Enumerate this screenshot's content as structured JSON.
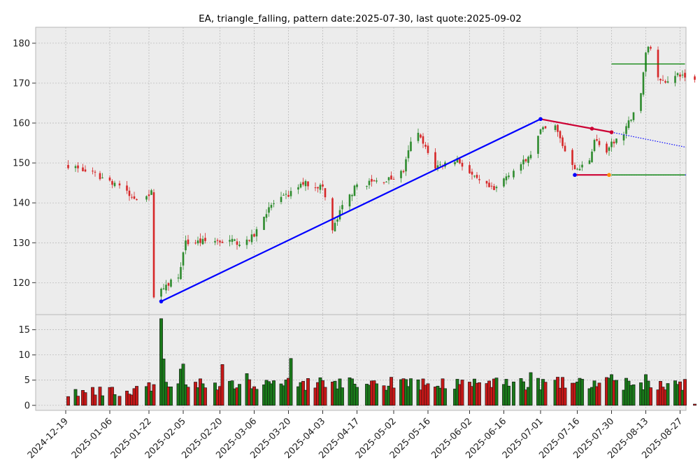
{
  "chart_data": {
    "type": "candlestick",
    "title": "EA, triangle_falling, pattern date:2025-07-30, last quote:2025-09-02",
    "xlabel": "",
    "ylabel": "",
    "grid": true,
    "x_tick_labels": [
      "2024-12-19",
      "2025-01-06",
      "2025-01-22",
      "2025-02-05",
      "2025-02-20",
      "2025-03-06",
      "2025-03-20",
      "2025-04-03",
      "2025-04-17",
      "2025-05-02",
      "2025-05-16",
      "2025-06-02",
      "2025-06-16",
      "2025-07-01",
      "2025-07-16",
      "2025-07-30",
      "2025-08-13",
      "2025-08-27"
    ],
    "price_panel": {
      "ylim": [
        112,
        184
      ],
      "y_ticks": [
        120,
        130,
        140,
        150,
        160,
        170,
        180
      ],
      "trend_lines": [
        {
          "color": "#0000ff",
          "from": [
            "2025-01-27",
            115.3
          ],
          "to": [
            "2025-07-01",
            161.0
          ]
        },
        {
          "color": "#cc0033",
          "from": [
            "2025-07-01",
            161.0
          ],
          "to": [
            "2025-07-30",
            157.7
          ]
        },
        {
          "color": "#cc0033",
          "from": [
            "2025-07-15",
            147.0
          ],
          "to": [
            "2025-07-29",
            147.0
          ]
        }
      ],
      "projection_lines": [
        {
          "color": "#0000ff",
          "style": "dotted",
          "from": [
            "2025-07-30",
            157.7
          ],
          "to": [
            "2025-09-10",
            152.5
          ]
        },
        {
          "color": "#0000ff",
          "style": "dotted",
          "from": [
            "2025-07-29",
            147.0
          ],
          "to": [
            "2025-09-10",
            147.0
          ]
        }
      ],
      "target_lines": [
        {
          "color": "#008000",
          "from": [
            "2025-07-30",
            174.8
          ],
          "to": [
            "2025-08-29",
            174.8
          ]
        },
        {
          "color": "#008000",
          "from": [
            "2025-07-30",
            147.0
          ],
          "to": [
            "2025-08-29",
            147.0
          ]
        }
      ],
      "pivot_points": [
        {
          "date": "2025-01-27",
          "price": 115.3,
          "color": "#0000ff"
        },
        {
          "date": "2025-07-01",
          "price": 161.0,
          "color": "#0000ff"
        },
        {
          "date": "2025-07-15",
          "price": 147.0,
          "color": "#0000ff"
        },
        {
          "date": "2025-07-22",
          "price": 158.6,
          "color": "#cc0033"
        },
        {
          "date": "2025-07-29",
          "price": 147.0,
          "color": "#ff8c00"
        },
        {
          "date": "2025-07-30",
          "price": 157.7,
          "color": "#cc0033"
        }
      ]
    },
    "volume_panel": {
      "ylim": [
        -1,
        18
      ],
      "y_ticks": [
        0,
        5,
        10,
        15
      ]
    },
    "colors": {
      "up": "#2e8b2e",
      "down": "#d62728",
      "vol_up": "#1a7a1a",
      "vol_down": "#c81818"
    },
    "anchors": [
      [
        "2024-12-20",
        149.5
      ],
      [
        "2024-12-31",
        147.0
      ],
      [
        "2025-01-10",
        144.5
      ],
      [
        "2025-01-15",
        141.0
      ],
      [
        "2025-01-23",
        142.5
      ],
      [
        "2025-01-24",
        117.0
      ],
      [
        "2025-02-03",
        122.0
      ],
      [
        "2025-02-06",
        130.0
      ],
      [
        "2025-02-18",
        130.5
      ],
      [
        "2025-03-03",
        130.0
      ],
      [
        "2025-03-06",
        132.0
      ],
      [
        "2025-03-12",
        139.0
      ],
      [
        "2025-03-20",
        142.0
      ],
      [
        "2025-03-26",
        145.0
      ],
      [
        "2025-04-03",
        144.0
      ],
      [
        "2025-04-07",
        133.0
      ],
      [
        "2025-04-11",
        139.0
      ],
      [
        "2025-04-17",
        144.5
      ],
      [
        "2025-05-01",
        146.0
      ],
      [
        "2025-05-06",
        148.0
      ],
      [
        "2025-05-09",
        155.0
      ],
      [
        "2025-05-12",
        157.0
      ],
      [
        "2025-05-19",
        149.0
      ],
      [
        "2025-05-28",
        151.0
      ],
      [
        "2025-06-04",
        146.0
      ],
      [
        "2025-06-12",
        143.0
      ],
      [
        "2025-06-18",
        147.5
      ],
      [
        "2025-06-26",
        151.0
      ],
      [
        "2025-07-01",
        158.0
      ],
      [
        "2025-07-07",
        159.0
      ],
      [
        "2025-07-11",
        153.0
      ],
      [
        "2025-07-16",
        148.0
      ],
      [
        "2025-07-21",
        151.0
      ],
      [
        "2025-07-23",
        156.0
      ],
      [
        "2025-07-28",
        152.0
      ],
      [
        "2025-07-30",
        155.0
      ],
      [
        "2025-08-04",
        157.0
      ],
      [
        "2025-08-06",
        160.0
      ],
      [
        "2025-08-08",
        163.0
      ],
      [
        "2025-08-11",
        167.0
      ],
      [
        "2025-08-13",
        178.0
      ],
      [
        "2025-08-15",
        179.0
      ],
      [
        "2025-08-19",
        170.0
      ],
      [
        "2025-08-22",
        171.0
      ],
      [
        "2025-08-27",
        172.0
      ],
      [
        "2025-09-02",
        171.0
      ]
    ],
    "volume_spikes": {
      "2025-01-27": 17.2,
      "2025-01-28": 9.2,
      "2025-02-04": 7.2,
      "2025-02-05": 8.2,
      "2025-02-21": 8.1,
      "2025-03-03": 6.3,
      "2025-03-21": 9.3,
      "2025-05-09": 5.3,
      "2025-06-27": 6.5,
      "2025-07-30": 6.1,
      "2025-08-13": 6.1
    },
    "series_note_days": 176
  }
}
